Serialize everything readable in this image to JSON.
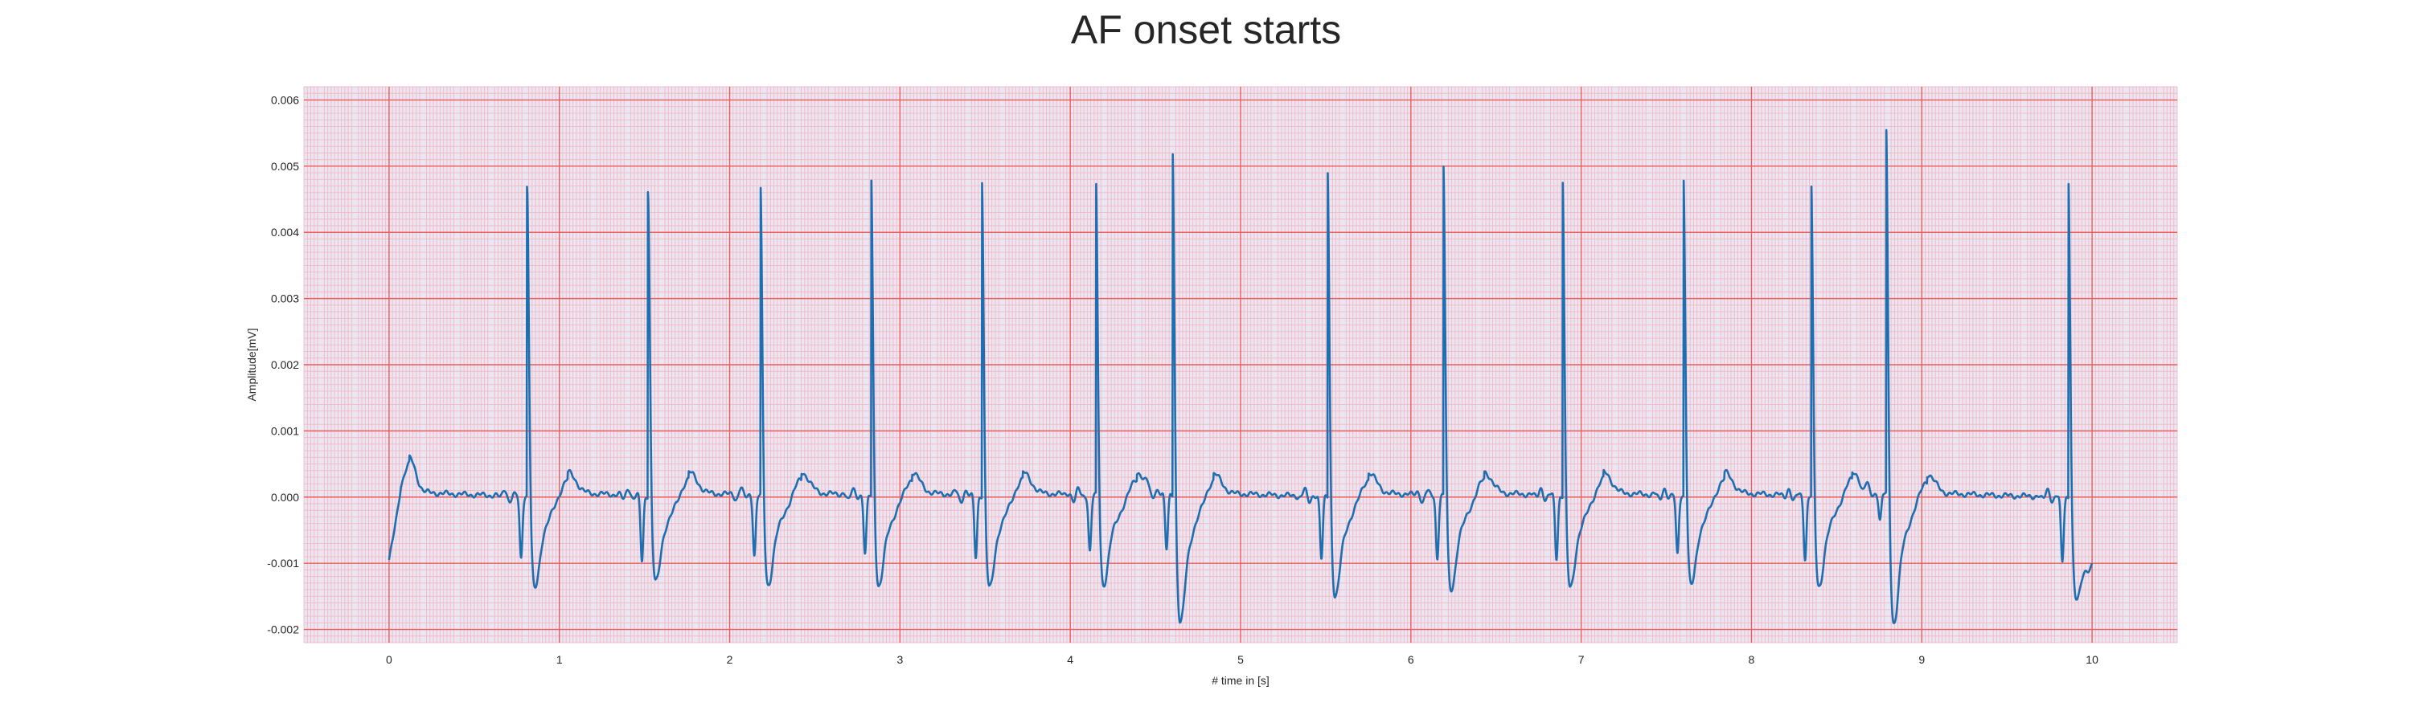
{
  "chart_data": {
    "type": "line",
    "title": "AF onset starts",
    "xlabel": "# time in [s]",
    "ylabel": "Amplitude[mV]",
    "xlim": [
      -0.5,
      10.5
    ],
    "ylim": [
      -0.0022,
      0.0062
    ],
    "xticks": [
      0,
      1,
      2,
      3,
      4,
      5,
      6,
      7,
      8,
      9,
      10
    ],
    "xtick_labels": [
      "0",
      "1",
      "2",
      "3",
      "4",
      "5",
      "6",
      "7",
      "8",
      "9",
      "10"
    ],
    "yticks": [
      -0.002,
      -0.001,
      0.0,
      0.001,
      0.002,
      0.003,
      0.004,
      0.005,
      0.006
    ],
    "ytick_labels": [
      "-0.002",
      "-0.001",
      "0.000",
      "0.001",
      "0.002",
      "0.003",
      "0.004",
      "0.005",
      "0.006"
    ],
    "grid": true,
    "major_grid_color": "#f05a5a",
    "minor_grid_color": "#f4b8c4",
    "plot_background": "#eae6f2",
    "line_color": "#1f6fb0",
    "series": [
      {
        "x_range": [
          0,
          10
        ],
        "r_peaks_s": [
          0.81,
          1.52,
          2.18,
          2.83,
          3.48,
          4.15,
          4.6,
          5.51,
          6.19,
          6.89,
          7.6,
          8.35,
          8.79,
          9.86
        ],
        "r_peak_amplitudes": [
          0.0048,
          0.00475,
          0.00485,
          0.005,
          0.005,
          0.0049,
          0.0055,
          0.00515,
          0.0052,
          0.005,
          0.005,
          0.0049,
          0.0058,
          0.005
        ],
        "post_r_troughs": [
          -0.00138,
          -0.00128,
          -0.00133,
          -0.00135,
          -0.00137,
          -0.00132,
          -0.0019,
          -0.0015,
          -0.0014,
          -0.00137,
          -0.00133,
          -0.00136,
          -0.0019,
          -0.00142
        ],
        "pre_r_q_dips": [
          -0.00095,
          -0.001,
          -0.0009,
          -0.0009,
          -0.00095,
          -0.00085,
          -0.00085,
          -0.00095,
          -0.00095,
          -0.00095,
          -0.0009,
          -0.00095,
          -0.0004,
          -0.001
        ],
        "start_value": -0.00095,
        "end_value": -0.00075
      }
    ]
  }
}
